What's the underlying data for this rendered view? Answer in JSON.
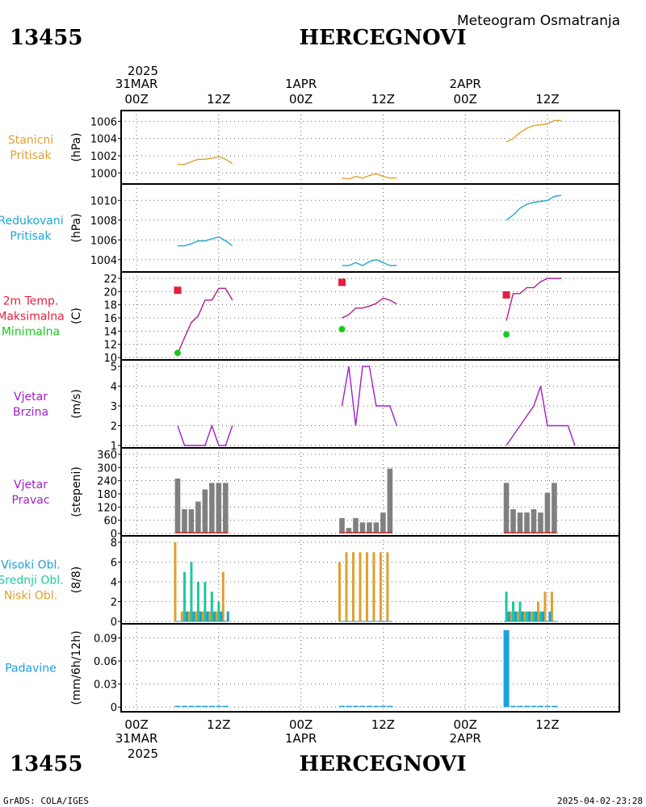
{
  "header": {
    "station_id": "13455",
    "station_name": "HERCEGNOVI",
    "product": "Meteogram Osmatranja"
  },
  "footer": {
    "credit": "GrADS: COLA/IGES",
    "timestamp": "2025-04-02-23:28"
  },
  "time_axis": {
    "top_year": "2025",
    "top_labels": [
      {
        "t": 0,
        "line1": "31MAR",
        "line2": "00Z"
      },
      {
        "t": 12,
        "line1": "",
        "line2": "12Z"
      },
      {
        "t": 24,
        "line1": "1APR",
        "line2": "00Z"
      },
      {
        "t": 36,
        "line1": "",
        "line2": "12Z"
      },
      {
        "t": 48,
        "line1": "2APR",
        "line2": "00Z"
      },
      {
        "t": 60,
        "line1": "",
        "line2": "12Z"
      }
    ],
    "bottom_labels": [
      {
        "t": 0,
        "line1": "00Z",
        "line2": "31MAR"
      },
      {
        "t": 12,
        "line1": "12Z",
        "line2": ""
      },
      {
        "t": 24,
        "line1": "00Z",
        "line2": "1APR"
      },
      {
        "t": 36,
        "line1": "12Z",
        "line2": ""
      },
      {
        "t": 48,
        "line1": "00Z",
        "line2": "2APR"
      },
      {
        "t": 60,
        "line1": "12Z",
        "line2": ""
      }
    ],
    "bottom_year": "2025"
  },
  "colors": {
    "pressure_station": "#e0a030",
    "pressure_reduced": "#1ca6d4",
    "temp_max": "#e61e3c",
    "temp_min": "#1ec81e",
    "temp_line": "#b01e8c",
    "wind": "#a020c8",
    "wind_dir_bar": "#808080",
    "wind_dir_calm": "#c83232",
    "cloud_high": "#1c9ed4",
    "cloud_mid": "#1ec89c",
    "cloud_low": "#e0a030",
    "precip": "#1ca0e0",
    "title": "#000000"
  },
  "chart_data": [
    {
      "type": "line",
      "name": "stanicni-pritisak",
      "label_lines": [
        "Stanicni",
        "Pritisak"
      ],
      "label_color": "#e0a030",
      "ylabel": "(hPa)",
      "ylim": [
        999,
        1006.5
      ],
      "yticks": [
        1000,
        1002,
        1004,
        1006
      ],
      "series": [
        {
          "values": [
            [
              6,
              1001.0
            ],
            [
              7,
              1001.0
            ],
            [
              8,
              1001.3
            ],
            [
              9,
              1001.6
            ],
            [
              10,
              1001.6
            ],
            [
              11,
              1001.7
            ],
            [
              12,
              1001.9
            ],
            [
              13,
              1001.6
            ],
            [
              14,
              1001.1
            ]
          ]
        },
        {
          "values": [
            [
              30,
              999.4
            ],
            [
              31,
              999.3
            ],
            [
              32,
              999.6
            ],
            [
              33,
              999.4
            ],
            [
              34,
              999.7
            ],
            [
              35,
              999.9
            ],
            [
              36,
              999.6
            ],
            [
              37,
              999.4
            ],
            [
              38,
              999.4
            ]
          ]
        },
        {
          "values": [
            [
              54,
              1003.6
            ],
            [
              55,
              1004.0
            ],
            [
              56,
              1004.7
            ],
            [
              57,
              1005.2
            ],
            [
              58,
              1005.5
            ],
            [
              59,
              1005.6
            ],
            [
              60,
              1005.7
            ],
            [
              61,
              1006.1
            ],
            [
              62,
              1006.1
            ]
          ]
        }
      ]
    },
    {
      "type": "line",
      "name": "redukovani-pritisak",
      "label_lines": [
        "Redukovani",
        "Pritisak"
      ],
      "label_color": "#1ca6d4",
      "ylabel": "(hPa)",
      "ylim": [
        1003,
        1011
      ],
      "yticks": [
        1004,
        1006,
        1008,
        1010
      ],
      "series": [
        {
          "values": [
            [
              6,
              1005.4
            ],
            [
              7,
              1005.4
            ],
            [
              8,
              1005.6
            ],
            [
              9,
              1005.9
            ],
            [
              10,
              1005.9
            ],
            [
              11,
              1006.1
            ],
            [
              12,
              1006.3
            ],
            [
              13,
              1005.9
            ],
            [
              14,
              1005.4
            ]
          ]
        },
        {
          "values": [
            [
              30,
              1003.4
            ],
            [
              31,
              1003.4
            ],
            [
              32,
              1003.7
            ],
            [
              33,
              1003.4
            ],
            [
              34,
              1003.8
            ],
            [
              35,
              1004.0
            ],
            [
              36,
              1003.7
            ],
            [
              37,
              1003.4
            ],
            [
              38,
              1003.4
            ]
          ]
        },
        {
          "values": [
            [
              54,
              1008.0
            ],
            [
              55,
              1008.5
            ],
            [
              56,
              1009.2
            ],
            [
              57,
              1009.6
            ],
            [
              58,
              1009.8
            ],
            [
              59,
              1009.9
            ],
            [
              60,
              1010.0
            ],
            [
              61,
              1010.4
            ],
            [
              62,
              1010.5
            ]
          ]
        }
      ]
    },
    {
      "type": "line",
      "name": "temperatura",
      "label_lines": [
        "2m Temp.",
        "Maksimalna",
        "Minimalna"
      ],
      "label_line_colors": [
        "#e61e3c",
        "#e61e3c",
        "#1ec81e"
      ],
      "ylabel": "(C)",
      "ylim": [
        10,
        22
      ],
      "yticks": [
        10,
        12,
        14,
        16,
        18,
        20,
        22
      ],
      "series": [
        {
          "values": [
            [
              6,
              10.6
            ],
            [
              7,
              13.0
            ],
            [
              8,
              15.3
            ],
            [
              9,
              16.3
            ],
            [
              10,
              18.7
            ],
            [
              11,
              18.7
            ],
            [
              12,
              20.5
            ],
            [
              13,
              20.5
            ],
            [
              14,
              18.7
            ]
          ]
        },
        {
          "values": [
            [
              30,
              16.0
            ],
            [
              31,
              16.5
            ],
            [
              32,
              17.5
            ],
            [
              33,
              17.5
            ],
            [
              34,
              17.8
            ],
            [
              35,
              18.2
            ],
            [
              36,
              19.0
            ],
            [
              37,
              18.7
            ],
            [
              38,
              18.1
            ]
          ]
        },
        {
          "values": [
            [
              54,
              15.6
            ],
            [
              55,
              19.7
            ],
            [
              56,
              19.7
            ],
            [
              57,
              20.6
            ],
            [
              58,
              20.6
            ],
            [
              59,
              21.5
            ],
            [
              60,
              22.0
            ],
            [
              61,
              22.0
            ],
            [
              62,
              22.0
            ]
          ]
        }
      ],
      "max_points": [
        [
          6,
          20.2
        ],
        [
          30,
          21.4
        ],
        [
          54,
          19.5
        ]
      ],
      "min_points": [
        [
          6,
          10.7
        ],
        [
          30,
          14.3
        ],
        [
          54,
          13.5
        ]
      ]
    },
    {
      "type": "line",
      "name": "vjetar-brzina",
      "label_lines": [
        "Vjetar",
        "Brzina"
      ],
      "label_color": "#a020c8",
      "ylabel": "(m/s)",
      "ylim": [
        1,
        5
      ],
      "yticks": [
        1,
        2,
        3,
        4,
        5
      ],
      "series": [
        {
          "values": [
            [
              6,
              2
            ],
            [
              7,
              1
            ],
            [
              8,
              1
            ],
            [
              9,
              1
            ],
            [
              10,
              1
            ],
            [
              11,
              2
            ],
            [
              12,
              1
            ],
            [
              13,
              1
            ],
            [
              14,
              2
            ]
          ]
        },
        {
          "values": [
            [
              30,
              3
            ],
            [
              31,
              5
            ],
            [
              32,
              2
            ],
            [
              33,
              5
            ],
            [
              34,
              5
            ],
            [
              35,
              3
            ],
            [
              36,
              3
            ],
            [
              37,
              3
            ],
            [
              38,
              2
            ]
          ]
        },
        {
          "values": [
            [
              54,
              1
            ],
            [
              56,
              2
            ],
            [
              58,
              3
            ],
            [
              59,
              4
            ],
            [
              60,
              2
            ],
            [
              61,
              2
            ],
            [
              62,
              2
            ],
            [
              63,
              2
            ],
            [
              64,
              1
            ]
          ]
        }
      ]
    },
    {
      "type": "bar",
      "name": "vjetar-pravac",
      "label_lines": [
        "Vjetar",
        "Pravac"
      ],
      "label_color": "#a020c8",
      "ylabel": "(stepeni)",
      "ylim": [
        0,
        360
      ],
      "yticks": [
        0,
        60,
        120,
        180,
        240,
        300,
        360
      ],
      "x": [
        6,
        7,
        8,
        9,
        10,
        11,
        12,
        13,
        30,
        31,
        32,
        33,
        34,
        35,
        36,
        37,
        54,
        55,
        56,
        57,
        58,
        59,
        60,
        61
      ],
      "values": [
        250,
        110,
        110,
        145,
        200,
        230,
        230,
        230,
        70,
        25,
        70,
        50,
        50,
        50,
        95,
        295,
        230,
        110,
        95,
        95,
        110,
        95,
        185,
        230
      ]
    },
    {
      "type": "bar",
      "name": "oblacnost",
      "label_lines": [
        "Visoki Obl.",
        "Srednji Obl.",
        "Niski Obl."
      ],
      "label_line_colors": [
        "#1c9ed4",
        "#1ec89c",
        "#e0a030"
      ],
      "ylabel": "(8/8)",
      "ylim": [
        0,
        8
      ],
      "yticks": [
        0,
        2,
        4,
        6,
        8
      ],
      "x": [
        6,
        7,
        8,
        9,
        10,
        11,
        12,
        13,
        30,
        31,
        32,
        33,
        34,
        35,
        36,
        37,
        54,
        55,
        56,
        57,
        58,
        59,
        60,
        61
      ],
      "series": [
        {
          "name": "Niski Obl.",
          "values": [
            8,
            1,
            1,
            1,
            1,
            1,
            1,
            5,
            6,
            7,
            7,
            7,
            7,
            7,
            7,
            7,
            0,
            1,
            1,
            1,
            1,
            2,
            3,
            3
          ]
        },
        {
          "name": "Srednji Obl.",
          "values": [
            0,
            5,
            6,
            4,
            4,
            3,
            2,
            0,
            0,
            0,
            0,
            0,
            0,
            0,
            0,
            0,
            3,
            2,
            2,
            1,
            1,
            1,
            0,
            0
          ]
        },
        {
          "name": "Visoki Obl.",
          "values": [
            0,
            1,
            1,
            1,
            1,
            1,
            1,
            1,
            0,
            0,
            0,
            0,
            0,
            0,
            0,
            0,
            1,
            1,
            1,
            1,
            1,
            1,
            1,
            0
          ]
        }
      ]
    },
    {
      "type": "bar",
      "name": "padavine",
      "label_lines": [
        "Padavine"
      ],
      "label_color": "#1ca0e0",
      "ylabel": "(mm/6h/12h)",
      "ylim": [
        -0.003,
        0.1
      ],
      "yticks": [
        0,
        0.03,
        0.06,
        0.09
      ],
      "ytick_labels": [
        "0",
        "0.03",
        "0.06",
        "0.09"
      ],
      "x": [
        6,
        7,
        8,
        9,
        10,
        11,
        12,
        13,
        30,
        31,
        32,
        33,
        34,
        35,
        36,
        37,
        54,
        55,
        56,
        57,
        58,
        59,
        60,
        61
      ],
      "values": [
        0,
        0,
        0,
        0,
        0,
        0,
        0,
        0,
        0,
        0,
        0,
        0,
        0,
        0,
        0,
        0,
        0.1,
        0,
        0,
        0,
        0,
        0,
        0,
        0
      ]
    }
  ]
}
